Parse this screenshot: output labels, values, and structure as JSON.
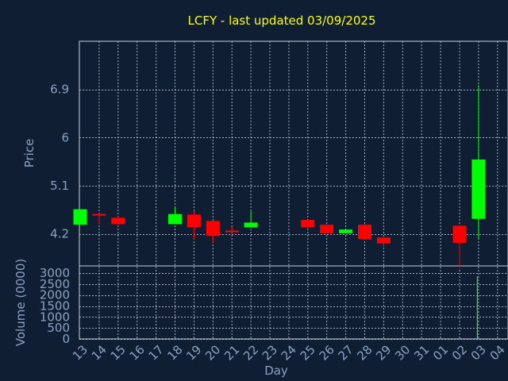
{
  "chart_data": {
    "type": "candlestick",
    "title": "LCFY - last updated 03/09/2025",
    "xlabel": "Day",
    "ylabel": "Price",
    "volume_label": "Volume (0000)",
    "grid": true,
    "x_ticks": [
      "13",
      "14",
      "15",
      "16",
      "17",
      "18",
      "19",
      "20",
      "21",
      "22",
      "23",
      "24",
      "25",
      "26",
      "27",
      "28",
      "29",
      "30",
      "31",
      "01",
      "02",
      "03",
      "04"
    ],
    "price_ticks": [
      4.2,
      5.1,
      6,
      6.9
    ],
    "price_tick_labels": [
      "4.2",
      "5.1",
      "6",
      "6.9"
    ],
    "price_range": [
      3.6,
      7.8
    ],
    "volume_ticks": [
      0,
      500,
      1000,
      1500,
      2000,
      2500,
      3000
    ],
    "volume_tick_labels": [
      "0",
      "500",
      "1000",
      "1500",
      "2000",
      "2500",
      "3000"
    ],
    "volume_range": [
      0,
      3000
    ],
    "colors": {
      "up": "#00ff00",
      "down": "#ff0000",
      "volume": "#00ff00"
    },
    "candles": [
      {
        "day": "13",
        "open": 4.37,
        "close": 4.66,
        "high": 4.66,
        "low": 4.37
      },
      {
        "day": "14",
        "open": 4.57,
        "close": 4.55,
        "high": 4.58,
        "low": 4.38
      },
      {
        "day": "15",
        "open": 4.5,
        "close": 4.38,
        "high": 4.54,
        "low": 4.37
      },
      {
        "day": "18",
        "open": 4.38,
        "close": 4.57,
        "high": 4.7,
        "low": 4.38
      },
      {
        "day": "19",
        "open": 4.56,
        "close": 4.32,
        "high": 4.63,
        "low": 4.09
      },
      {
        "day": "20",
        "open": 4.44,
        "close": 4.16,
        "high": 4.44,
        "low": 4.02
      },
      {
        "day": "21",
        "open": 4.26,
        "close": 4.23,
        "high": 4.33,
        "low": 4.22
      },
      {
        "day": "22",
        "open": 4.32,
        "close": 4.41,
        "high": 4.62,
        "low": 4.32
      },
      {
        "day": "25",
        "open": 4.46,
        "close": 4.32,
        "high": 4.46,
        "low": 4.29
      },
      {
        "day": "26",
        "open": 4.37,
        "close": 4.21,
        "high": 4.38,
        "low": 4.21
      },
      {
        "day": "27",
        "open": 4.21,
        "close": 4.28,
        "high": 4.28,
        "low": 4.21
      },
      {
        "day": "28",
        "open": 4.37,
        "close": 4.1,
        "high": 4.39,
        "low": 4.1
      },
      {
        "day": "29",
        "open": 4.13,
        "close": 4.02,
        "high": 4.13,
        "low": 3.93
      },
      {
        "day": "02",
        "open": 4.35,
        "close": 4.03,
        "high": 4.35,
        "low": 3.55
      },
      {
        "day": "03",
        "open": 4.48,
        "close": 5.59,
        "high": 6.98,
        "low": 4.1
      }
    ],
    "volume": [
      {
        "day": "13",
        "value": 0
      },
      {
        "day": "14",
        "value": 0
      },
      {
        "day": "15",
        "value": 0
      },
      {
        "day": "18",
        "value": 0
      },
      {
        "day": "19",
        "value": 0
      },
      {
        "day": "20",
        "value": 0
      },
      {
        "day": "21",
        "value": 0
      },
      {
        "day": "22",
        "value": 0
      },
      {
        "day": "25",
        "value": 0
      },
      {
        "day": "26",
        "value": 0
      },
      {
        "day": "27",
        "value": 0
      },
      {
        "day": "28",
        "value": 0
      },
      {
        "day": "29",
        "value": 0
      },
      {
        "day": "02",
        "value": 0
      },
      {
        "day": "03",
        "value": 2850
      }
    ]
  }
}
